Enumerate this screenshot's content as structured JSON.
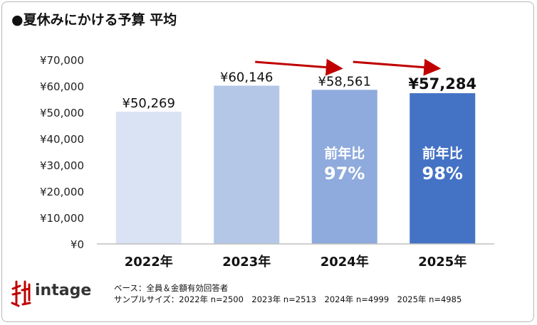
{
  "title": "●夏休みにかける予算 平均",
  "brand": {
    "name": "intage"
  },
  "footnote": {
    "line1": "ベース：全員＆金額有効回答者",
    "line2": "サンプルサイズ：2022年 n=2500　2023年 n=2513　2024年 n=4999　2025年 n=4985"
  },
  "colors": {
    "bars": [
      "#dae3f3",
      "#b4c7e7",
      "#8faadc",
      "#4472c4"
    ],
    "arrow": "#c00000",
    "axis": "#bfbfbf",
    "logo": "#c00000"
  },
  "chart_data": {
    "type": "bar",
    "categories": [
      "2022年",
      "2023年",
      "2024年",
      "2025年"
    ],
    "values": [
      50269,
      60146,
      58561,
      57284
    ],
    "value_labels": [
      "¥50,269",
      "¥60,146",
      "¥58,561",
      "¥57,284"
    ],
    "ylim": [
      0,
      70000
    ],
    "yticks": [
      0,
      10000,
      20000,
      30000,
      40000,
      50000,
      60000,
      70000
    ],
    "ytick_labels": [
      "¥0",
      "¥10,000",
      "¥20,000",
      "¥30,000",
      "¥40,000",
      "¥50,000",
      "¥60,000",
      "¥70,000"
    ],
    "grid": false,
    "annotations": [
      {
        "category": "2024年",
        "label": "前年比",
        "value": "97%"
      },
      {
        "category": "2025年",
        "label": "前年比",
        "value": "98%"
      }
    ],
    "trend_arrows": [
      {
        "from": "2023年",
        "to": "2024年"
      },
      {
        "from": "2024年",
        "to": "2025年"
      }
    ]
  }
}
